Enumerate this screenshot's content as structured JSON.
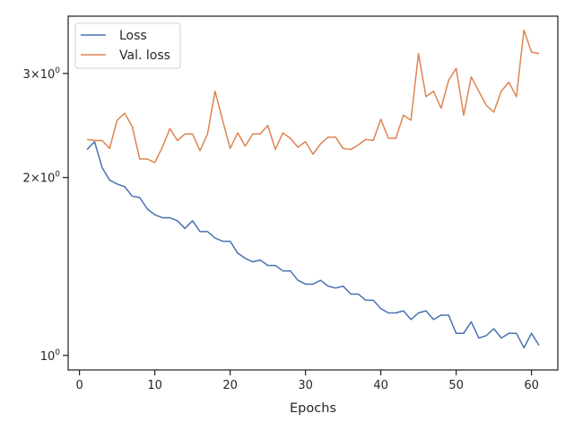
{
  "chart_data": {
    "type": "line",
    "xlabel": "Epochs",
    "ylabel": "",
    "yscale": "log",
    "xlim": [
      -1.5,
      63.5
    ],
    "ylim": [
      0.945,
      3.75
    ],
    "x_ticks": [
      0,
      10,
      20,
      30,
      40,
      50,
      60
    ],
    "y_ticks": [
      {
        "value": 1,
        "label": "10^0"
      },
      {
        "value": 2,
        "label": "2×10^0"
      },
      {
        "value": 3,
        "label": "3×10^0"
      }
    ],
    "grid": false,
    "legend_position": "top-left",
    "series": [
      {
        "name": "Loss",
        "color": "#4c72b0",
        "x": [
          1,
          2,
          3,
          4,
          5,
          6,
          7,
          8,
          9,
          10,
          11,
          12,
          13,
          14,
          15,
          16,
          17,
          18,
          19,
          20,
          21,
          22,
          23,
          24,
          25,
          26,
          27,
          28,
          29,
          30,
          31,
          32,
          33,
          34,
          35,
          36,
          37,
          38,
          39,
          40,
          41,
          42,
          43,
          44,
          45,
          46,
          47,
          48,
          49,
          50,
          51,
          52,
          53,
          54,
          55,
          56,
          57,
          58,
          59,
          60,
          61
        ],
        "values": [
          2.23,
          2.3,
          2.08,
          1.98,
          1.95,
          1.93,
          1.86,
          1.85,
          1.77,
          1.73,
          1.71,
          1.71,
          1.69,
          1.64,
          1.69,
          1.62,
          1.62,
          1.58,
          1.56,
          1.56,
          1.49,
          1.46,
          1.44,
          1.45,
          1.42,
          1.42,
          1.39,
          1.39,
          1.34,
          1.32,
          1.32,
          1.34,
          1.31,
          1.3,
          1.31,
          1.27,
          1.27,
          1.24,
          1.24,
          1.2,
          1.18,
          1.18,
          1.19,
          1.15,
          1.18,
          1.19,
          1.15,
          1.17,
          1.17,
          1.09,
          1.09,
          1.14,
          1.07,
          1.08,
          1.11,
          1.07,
          1.09,
          1.09,
          1.03,
          1.09,
          1.04
        ]
      },
      {
        "name": "Val. loss",
        "color": "#dd8452",
        "x": [
          1,
          2,
          3,
          4,
          5,
          6,
          7,
          8,
          9,
          10,
          11,
          12,
          13,
          14,
          15,
          16,
          17,
          18,
          19,
          20,
          21,
          22,
          23,
          24,
          25,
          26,
          27,
          28,
          29,
          30,
          31,
          32,
          33,
          34,
          35,
          36,
          37,
          38,
          39,
          40,
          41,
          42,
          43,
          44,
          45,
          46,
          47,
          48,
          49,
          50,
          51,
          52,
          53,
          54,
          55,
          56,
          57,
          58,
          59,
          60,
          61
        ],
        "values": [
          2.32,
          2.31,
          2.31,
          2.24,
          2.5,
          2.57,
          2.44,
          2.15,
          2.15,
          2.12,
          2.25,
          2.42,
          2.31,
          2.37,
          2.37,
          2.22,
          2.37,
          2.8,
          2.5,
          2.24,
          2.38,
          2.26,
          2.37,
          2.37,
          2.45,
          2.23,
          2.38,
          2.33,
          2.25,
          2.3,
          2.19,
          2.28,
          2.34,
          2.34,
          2.24,
          2.23,
          2.27,
          2.32,
          2.31,
          2.51,
          2.33,
          2.33,
          2.55,
          2.5,
          3.24,
          2.74,
          2.8,
          2.62,
          2.92,
          3.06,
          2.55,
          2.96,
          2.8,
          2.65,
          2.58,
          2.8,
          2.9,
          2.74,
          3.55,
          3.26,
          3.24
        ]
      }
    ]
  }
}
